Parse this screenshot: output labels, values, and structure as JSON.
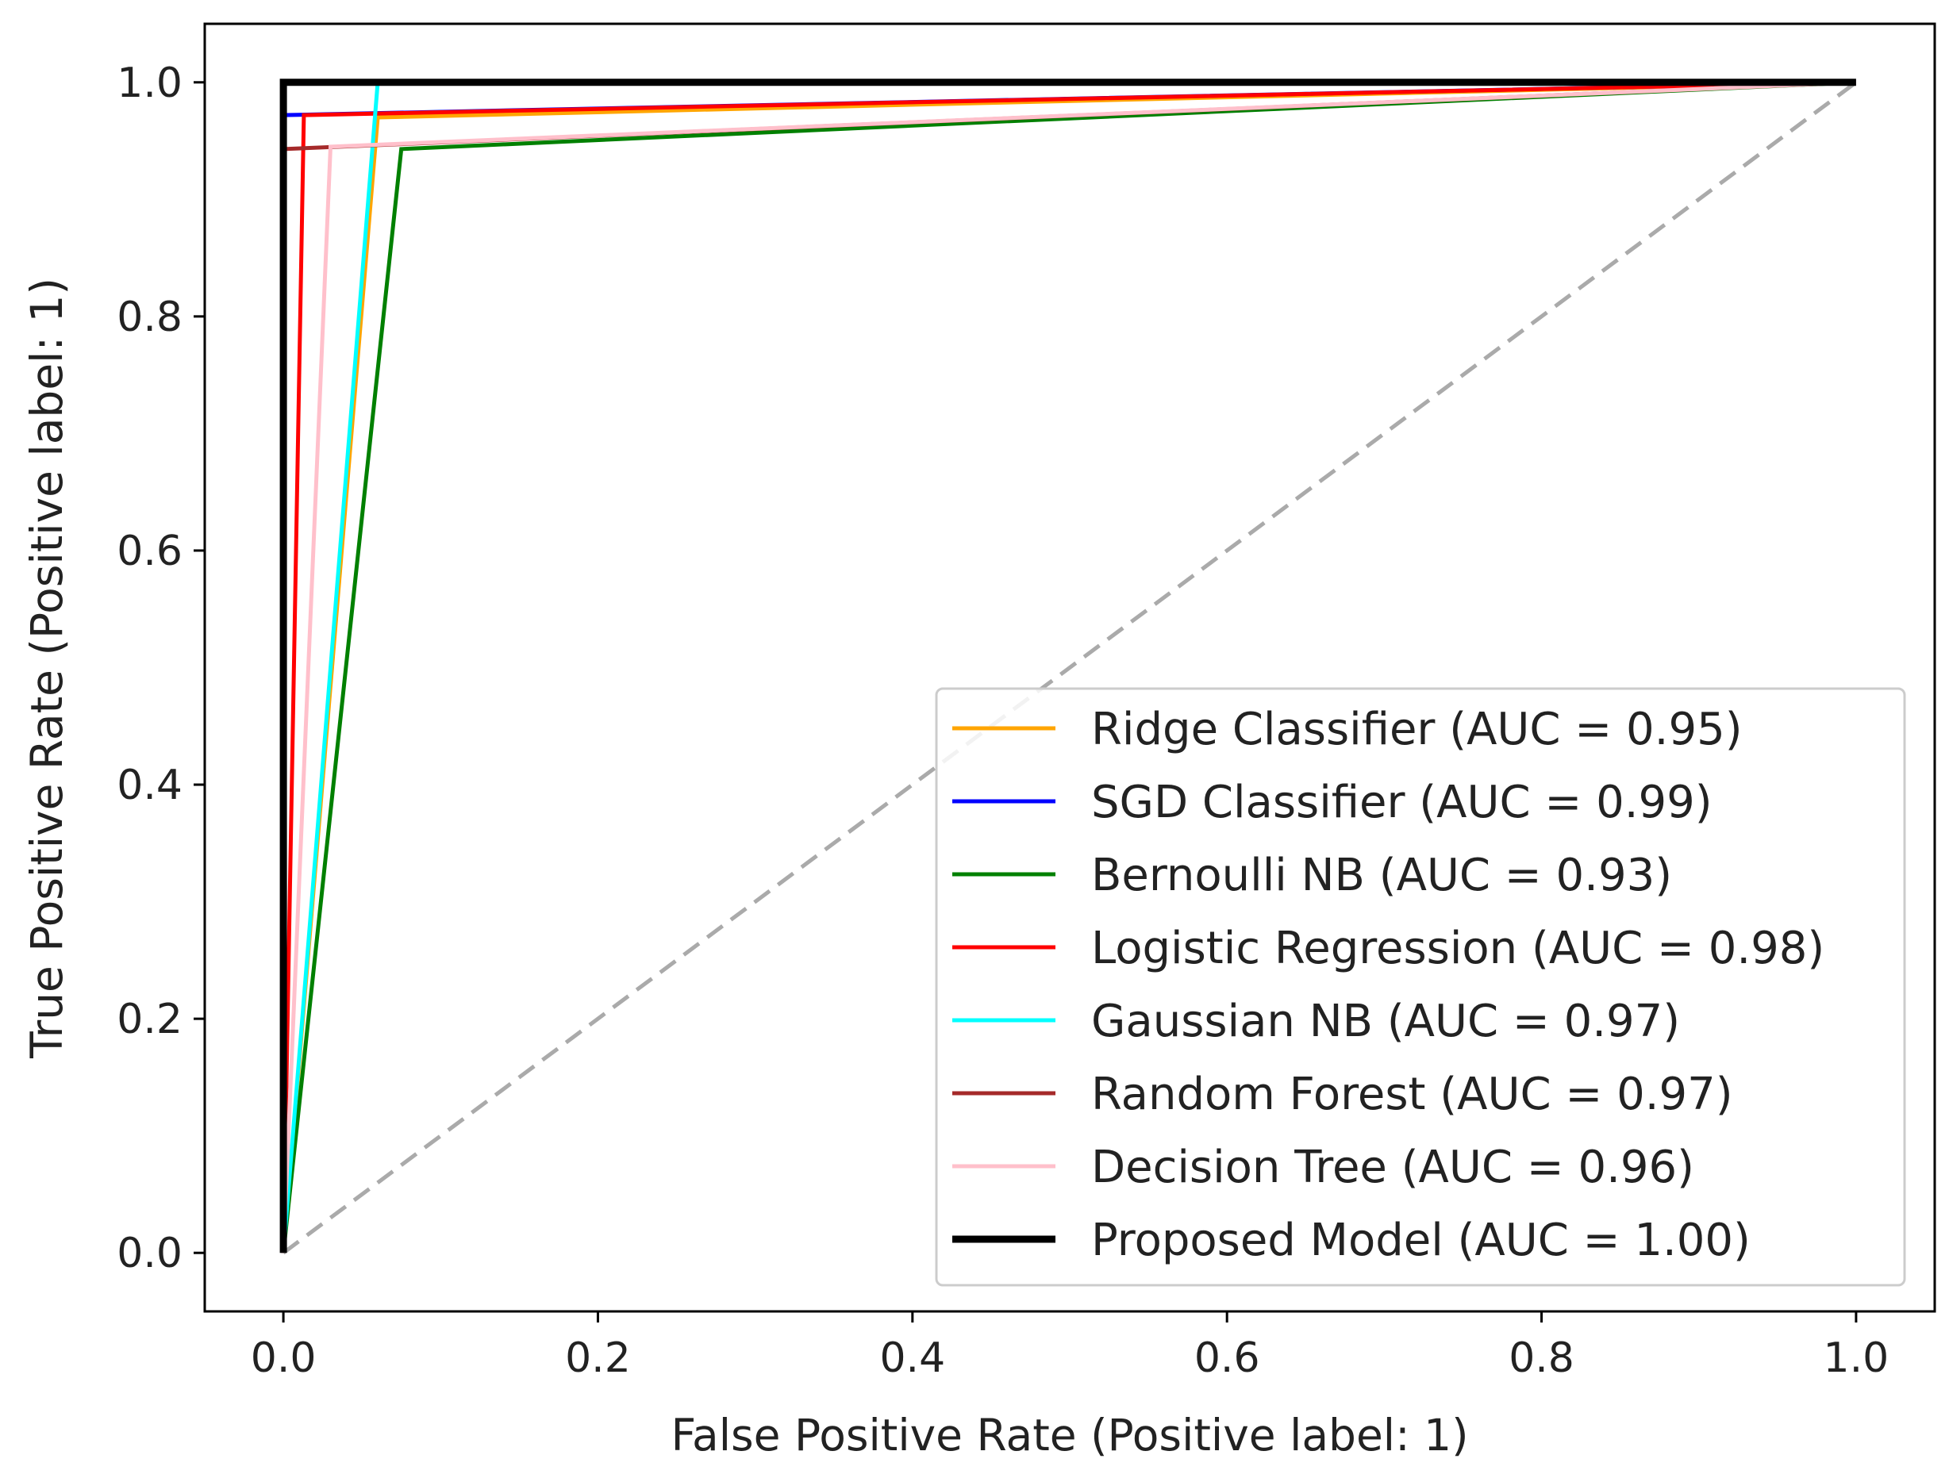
{
  "chart_data": {
    "type": "line",
    "title": "",
    "xlabel": "False Positive Rate (Positive label: 1)",
    "ylabel": "True Positive Rate (Positive label: 1)",
    "xlim": [
      -0.05,
      1.05
    ],
    "ylim": [
      -0.05,
      1.05
    ],
    "x_ticks": [
      0.0,
      0.2,
      0.4,
      0.6,
      0.8,
      1.0
    ],
    "y_ticks": [
      0.0,
      0.2,
      0.4,
      0.6,
      0.8,
      1.0
    ],
    "x_tick_labels": [
      "0.0",
      "0.2",
      "0.4",
      "0.6",
      "0.8",
      "1.0"
    ],
    "y_tick_labels": [
      "0.0",
      "0.2",
      "0.4",
      "0.6",
      "0.8",
      "1.0"
    ],
    "grid": false,
    "legend_position": "lower-right",
    "chance_line": {
      "x": [
        0,
        1
      ],
      "y": [
        0,
        1
      ],
      "color": "#aaaaaa",
      "style": "dashed"
    },
    "series": [
      {
        "name": "Ridge Classifier (AUC = 0.95)",
        "color": "#ffa500",
        "x": [
          0,
          0.06,
          1
        ],
        "y": [
          0,
          0.97,
          1
        ]
      },
      {
        "name": "SGD Classifier (AUC = 0.99)",
        "color": "#0000ff",
        "x": [
          0,
          0.0,
          1
        ],
        "y": [
          0,
          0.972,
          1
        ]
      },
      {
        "name": "Bernoulli NB (AUC = 0.93)",
        "color": "#008000",
        "x": [
          0,
          0.075,
          1
        ],
        "y": [
          0,
          0.943,
          1
        ]
      },
      {
        "name": "Logistic Regression (AUC = 0.98)",
        "color": "#ff0000",
        "x": [
          0,
          0.013,
          1
        ],
        "y": [
          0,
          0.972,
          1
        ]
      },
      {
        "name": "Gaussian NB (AUC = 0.97)",
        "color": "#00ffff",
        "x": [
          0,
          0.06,
          1
        ],
        "y": [
          0,
          1.0,
          1
        ]
      },
      {
        "name": "Random Forest (AUC = 0.97)",
        "color": "#a52a2a",
        "x": [
          0,
          0.0,
          1
        ],
        "y": [
          0,
          0.943,
          1
        ]
      },
      {
        "name": "Decision Tree (AUC = 0.96)",
        "color": "#ffc0cb",
        "x": [
          0,
          0.03,
          1
        ],
        "y": [
          0,
          0.945,
          1
        ]
      },
      {
        "name": "Proposed Model (AUC = 1.00)",
        "color": "#000000",
        "x": [
          0,
          0.0,
          1
        ],
        "y": [
          0,
          1.0,
          1
        ]
      }
    ]
  }
}
